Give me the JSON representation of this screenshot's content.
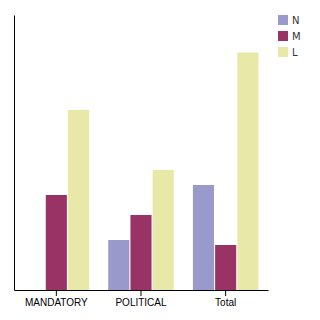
{
  "chart_data": {
    "type": "bar",
    "categories": [
      "MANDATORY",
      "POLITICAL",
      "Total"
    ],
    "series": [
      {
        "name": "N",
        "color": "#9999cc",
        "values": [
          0,
          20,
          42
        ]
      },
      {
        "name": "M",
        "color": "#993366",
        "values": [
          38,
          30,
          18
        ]
      },
      {
        "name": "L",
        "color": "#e8e8a8",
        "values": [
          72,
          48,
          95
        ]
      }
    ],
    "ylim": [
      0,
      110
    ],
    "yticks": [],
    "grid": false,
    "legend": "upper right",
    "tick_labels": "x"
  }
}
